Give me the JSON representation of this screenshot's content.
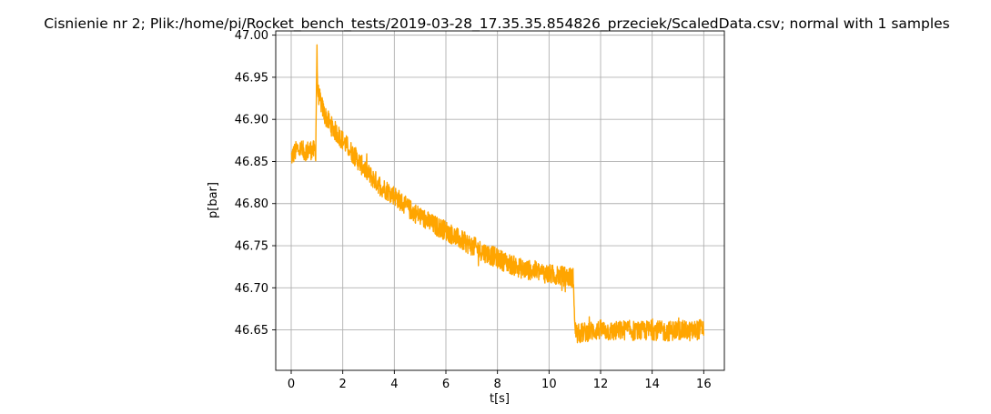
{
  "chart_data": {
    "type": "line",
    "title": "Cisnienie nr 2; Plik:/home/pi/Rocket_bench_tests/2019-03-28_17.35.35.854826_przeciek/ScaledData.csv; normal with 1 samples",
    "xlabel": "t[s]",
    "ylabel": "p[bar]",
    "xlim": [
      -0.6,
      16.8
    ],
    "ylim": [
      46.602,
      47.005
    ],
    "xticks": [
      0,
      2,
      4,
      6,
      8,
      10,
      12,
      14,
      16
    ],
    "yticks": [
      46.65,
      46.7,
      46.75,
      46.8,
      46.85,
      46.9,
      46.95,
      47.0
    ],
    "xtick_labels": [
      "0",
      "2",
      "4",
      "6",
      "8",
      "10",
      "12",
      "14",
      "16"
    ],
    "ytick_labels": [
      "46.65",
      "46.70",
      "46.75",
      "46.80",
      "46.85",
      "46.90",
      "46.95",
      "47.00"
    ],
    "grid": true,
    "series": [
      {
        "color": "#ffa500",
        "x": [
          0.0,
          0.25,
          0.5,
          0.75,
          0.95,
          1.0,
          1.02,
          1.1,
          1.3,
          1.6,
          2.0,
          2.5,
          3.0,
          3.5,
          4.0,
          4.5,
          5.0,
          5.5,
          6.0,
          6.5,
          7.0,
          7.5,
          8.0,
          8.5,
          9.0,
          9.5,
          10.0,
          10.5,
          10.95,
          11.0,
          11.1,
          11.5,
          12.0,
          12.5,
          13.0,
          13.5,
          14.0,
          14.5,
          15.0,
          15.5,
          16.0
        ],
        "y": [
          46.855,
          46.865,
          46.862,
          46.864,
          46.862,
          46.99,
          46.935,
          46.925,
          46.905,
          46.89,
          46.875,
          46.855,
          46.835,
          46.82,
          46.81,
          46.795,
          46.785,
          46.775,
          46.768,
          46.758,
          46.75,
          46.742,
          46.735,
          46.728,
          46.722,
          46.72,
          46.716,
          46.714,
          46.712,
          46.65,
          46.645,
          46.648,
          46.65,
          46.648,
          46.65,
          46.648,
          46.65,
          46.648,
          46.65,
          46.648,
          46.652
        ],
        "noise_amplitude": 0.012
      }
    ]
  }
}
